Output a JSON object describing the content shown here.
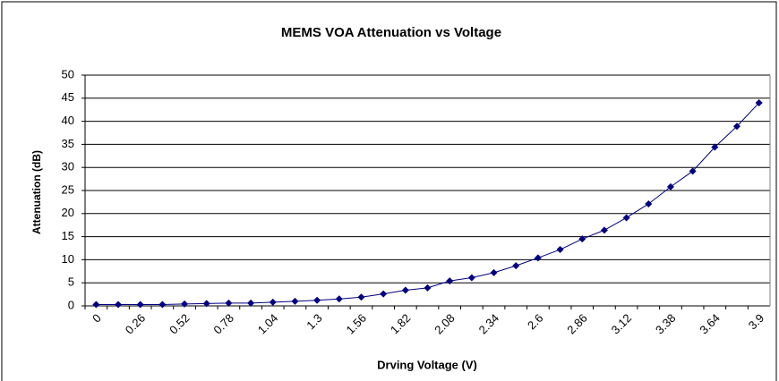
{
  "chart_data": {
    "type": "line",
    "title": "MEMS VOA Attenuation vs Voltage",
    "x_label": "Drving Voltage (V)",
    "y_label": "Attenuation (dB)",
    "categories": [
      "0",
      null,
      "0.26",
      null,
      "0.52",
      null,
      "0.78",
      null,
      "1.04",
      null,
      "1.3",
      null,
      "1.56",
      null,
      "1.82",
      null,
      "2.08",
      null,
      "2.34",
      null,
      "2.6",
      null,
      "2.86",
      null,
      "3.12",
      null,
      "3.38",
      null,
      "3.64",
      null,
      "3.9"
    ],
    "values": [
      0.3,
      0.3,
      0.3,
      0.3,
      0.4,
      0.5,
      0.6,
      0.6,
      0.8,
      1.0,
      1.2,
      1.5,
      1.9,
      2.6,
      3.4,
      3.9,
      5.4,
      6.1,
      7.2,
      8.7,
      10.4,
      12.2,
      14.5,
      16.4,
      19.1,
      22.1,
      25.8,
      29.2,
      34.4,
      38.9,
      44
    ],
    "color": "#000080",
    "ylim": [
      0,
      50
    ],
    "yticks": [
      0,
      5,
      10,
      15,
      20,
      25,
      30,
      35,
      40,
      45,
      50
    ],
    "grid": true
  }
}
